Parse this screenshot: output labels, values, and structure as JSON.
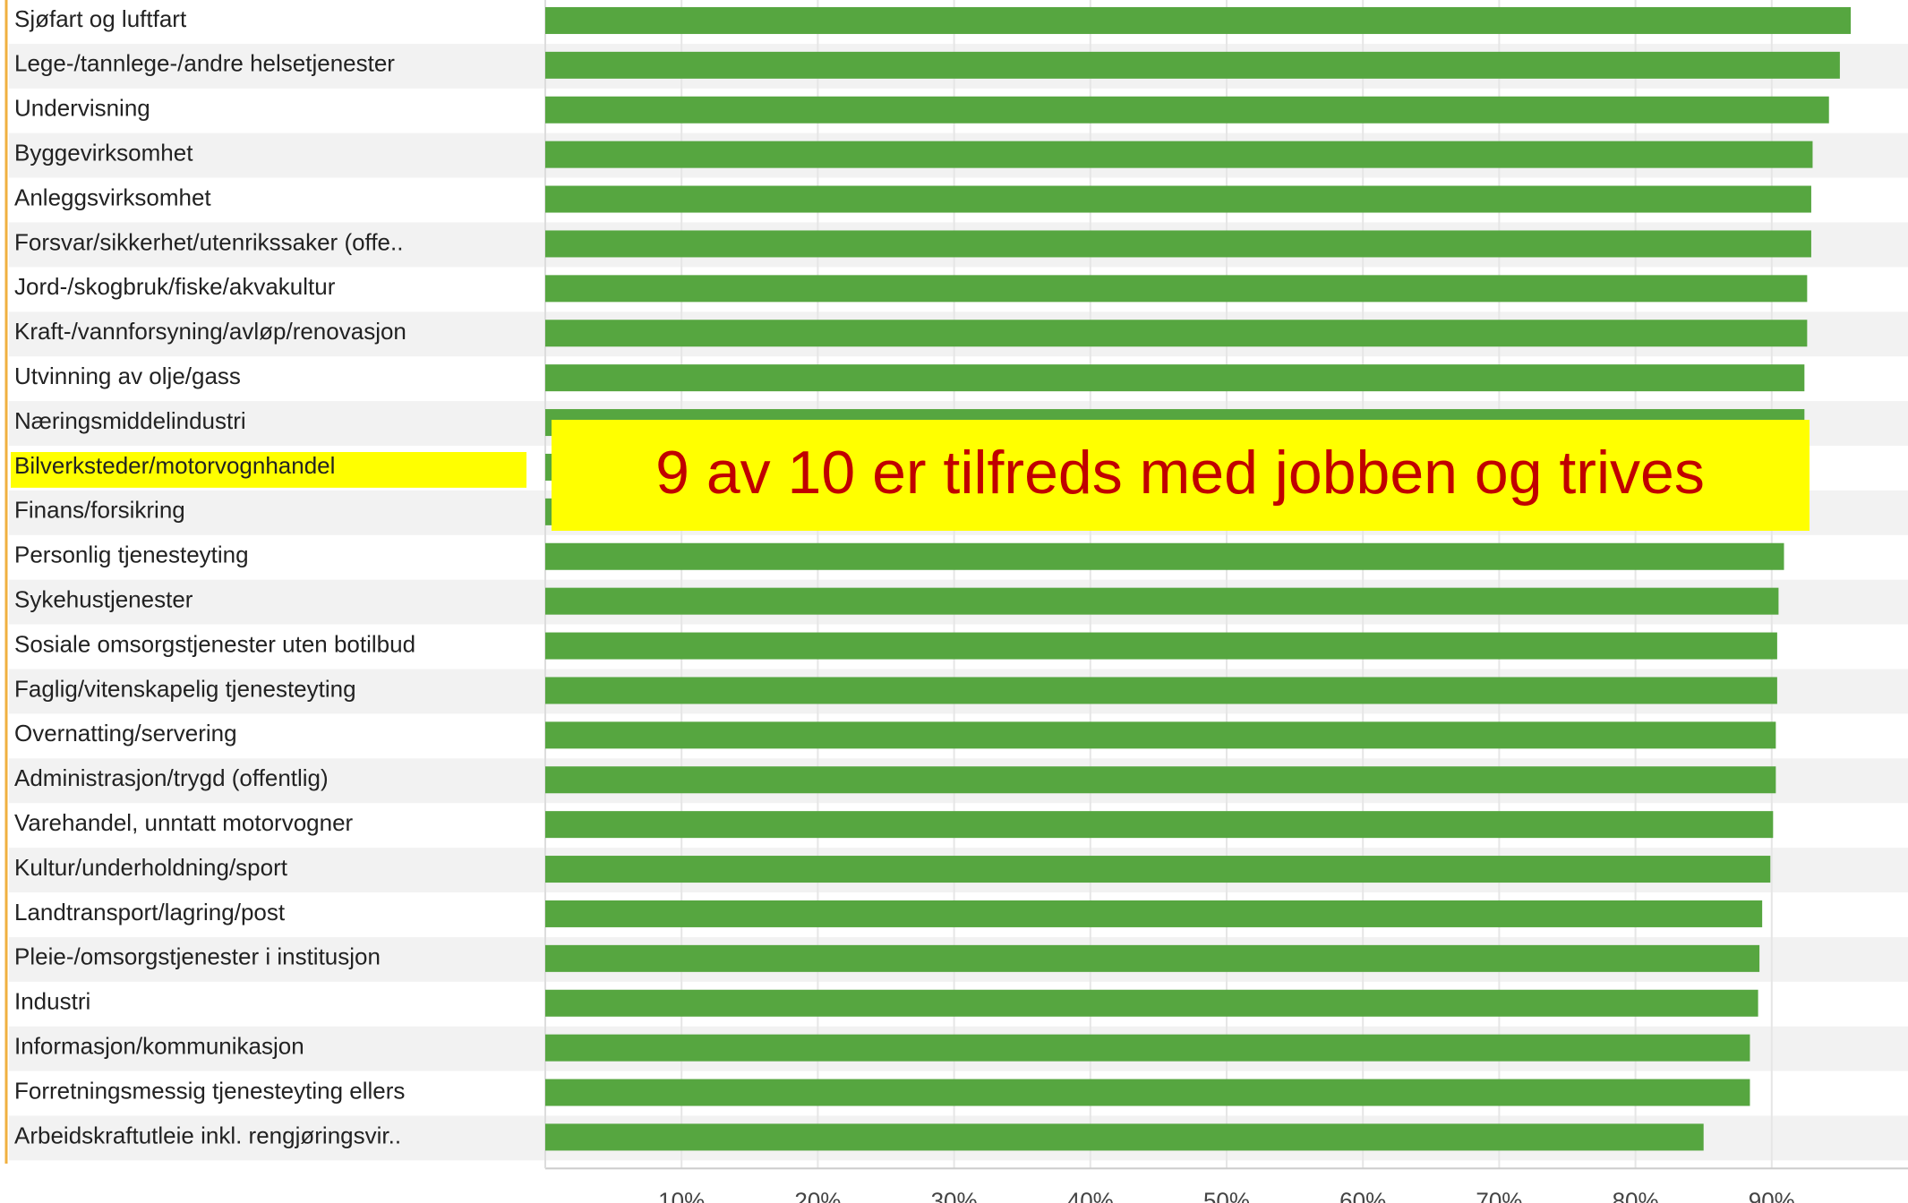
{
  "chart_data": {
    "type": "bar",
    "orientation": "horizontal",
    "categories": [
      "Sjøfart og luftfart",
      "Lege-/tannlege-/andre helsetjenester",
      "Undervisning",
      "Byggevirksomhet",
      "Anleggsvirksomhet",
      "Forsvar/sikkerhet/utenrikssaker (offe..",
      "Jord-/skogbruk/fiske/akvakultur",
      "Kraft-/vannforsyning/avløp/renovasjon",
      "Utvinning av olje/gass",
      "Næringsmiddelindustri",
      "Bilverksteder/motorvognhandel",
      "Finans/forsikring",
      "Personlig tjenesteyting",
      "Sykehustjenester",
      "Sosiale omsorgstjenester uten botilbud",
      "Faglig/vitenskapelig tjenesteyting",
      "Overnatting/servering",
      "Administrasjon/trygd (offentlig)",
      "Varehandel, unntatt motorvogner",
      "Kultur/underholdning/sport",
      "Landtransport/lagring/post",
      "Pleie-/omsorgstjenester i institusjon",
      "Industri",
      "Informasjon/kommunikasjon",
      "Forretningsmessig tjenesteyting ellers",
      "Arbeidskraftutleie inkl. rengjøringsvir.."
    ],
    "values": [
      95.8,
      95.0,
      94.2,
      93.0,
      92.9,
      92.9,
      92.6,
      92.6,
      92.4,
      92.4,
      92.2,
      92.0,
      90.9,
      90.5,
      90.4,
      90.4,
      90.3,
      90.3,
      90.1,
      89.9,
      89.3,
      89.1,
      89.0,
      88.4,
      88.4,
      85.0
    ],
    "color": "#56a640",
    "xlim": [
      0,
      100
    ],
    "xticks": [
      {
        "value": 10,
        "label": "10%"
      },
      {
        "value": 20,
        "label": "20%"
      },
      {
        "value": 30,
        "label": "30%"
      },
      {
        "value": 40,
        "label": "40%"
      },
      {
        "value": 50,
        "label": "50%"
      },
      {
        "value": 60,
        "label": "60%"
      },
      {
        "value": 70,
        "label": "70%"
      },
      {
        "value": 80,
        "label": "80%"
      },
      {
        "value": 90,
        "label": "90%"
      }
    ],
    "grid": true,
    "highlight_index": 10,
    "annotation": "9 av 10 er tilfreds med jobben og trives"
  }
}
